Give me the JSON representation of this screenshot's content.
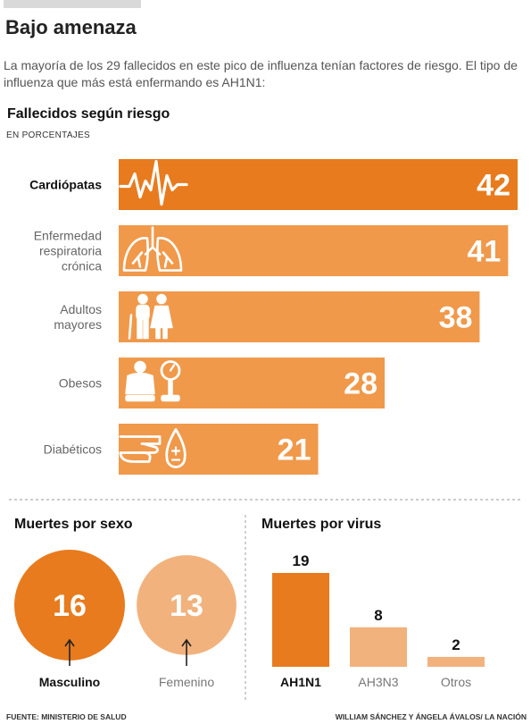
{
  "header": {
    "title": "Bajo amenaza",
    "intro": "La mayoría de los 29 fallecidos en este pico de influenza tenían factores de riesgo. El tipo de influenza que más está enfermando es AH1N1:"
  },
  "colors": {
    "dark_orange": "#e87b1e",
    "mid_orange": "#f0994a",
    "light_orange": "#f2b27d",
    "divider": "#bbbbbb"
  },
  "chart_data": [
    {
      "type": "bar",
      "orientation": "horizontal",
      "title": "Fallecidos según riesgo",
      "subtitle": "EN PORCENTAJES",
      "categories": [
        "Cardiópatas",
        "Enfermedad respiratoria crónica",
        "Adultos mayores",
        "Obesos",
        "Diabéticos"
      ],
      "label_lines": [
        [
          "Cardiópatas"
        ],
        [
          "Enfermedad",
          "respiratoria",
          "crónica"
        ],
        [
          "Adultos",
          "mayores"
        ],
        [
          "Obesos"
        ],
        [
          "Diabéticos"
        ]
      ],
      "values": [
        42,
        41,
        38,
        28,
        21
      ],
      "icons": [
        "heartbeat-icon",
        "lungs-icon",
        "elderly-couple-icon",
        "scale-icon",
        "glucose-test-icon"
      ],
      "xlim": [
        0,
        42
      ]
    },
    {
      "type": "bubble",
      "title": "Muertes por sexo",
      "categories": [
        "Masculino",
        "Femenino"
      ],
      "values": [
        16,
        13
      ]
    },
    {
      "type": "bar",
      "title": "Muertes por virus",
      "categories": [
        "AH1N1",
        "AH3N3",
        "Otros"
      ],
      "values": [
        19,
        8,
        2
      ],
      "ylim": [
        0,
        19
      ]
    }
  ],
  "footer": {
    "source": "FUENTE: MINISTERIO DE SALUD",
    "credits": "WILLIAM SÁNCHEZ Y ÁNGELA ÁVALOS/ LA NACIÓN"
  }
}
